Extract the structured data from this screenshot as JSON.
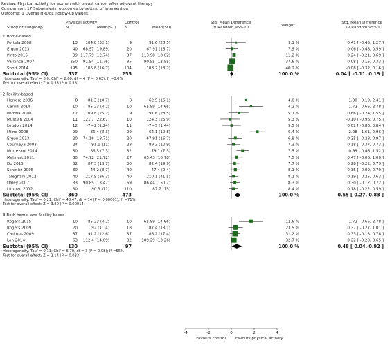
{
  "header": {
    "review_line": "Review:  Physical activity for women with breast cancer after adjuvant therapy",
    "comparison_line": "Comparison:  17 Subanalysis: outcomes by setting of intervention",
    "outcome_line": "Outcome:  1 Overall HRQoL (follow-up values)"
  },
  "columns": {
    "study": "Study or subgroup",
    "group1": "Physical activity",
    "group2": "Control",
    "n": "N",
    "mean_sd": "Mean(SD)",
    "smd_title": "Std. Mean Difference",
    "smd_method": "IV,Random,95% CI",
    "weight": "Weight",
    "smd_title2": "Std. Mean Difference",
    "smd_method2": "IV,Random,95% CI"
  },
  "chart_data": {
    "type": "forest",
    "xlim": [
      -4,
      4
    ],
    "xticks": [
      "-4",
      "-2",
      "0",
      "2",
      "4"
    ],
    "xlabel_left": "Favours control",
    "xlabel_right": "Favours physical activity",
    "groups": [
      {
        "title": "1 Home-based",
        "studies": [
          {
            "name": "Portela 2008",
            "n1": "13",
            "ms1": "104.8 (32.1)",
            "n2": "9",
            "ms2": "91.6 (28.5)",
            "weight": "3.1 %",
            "ci_text": "0.41 [ -0.45, 1.27 ]",
            "est": 0.41,
            "lo": -0.45,
            "hi": 1.27,
            "w": 3.1
          },
          {
            "name": "Ergun 2013",
            "n1": "40",
            "ms1": "68.97 (19.89)",
            "n2": "20",
            "ms2": "67.91 (16.7)",
            "weight": "7.9 %",
            "ci_text": "0.06 [ -0.48, 0.59 ]",
            "est": 0.06,
            "lo": -0.48,
            "hi": 0.59,
            "w": 7.9
          },
          {
            "name": "Pinto 2015",
            "n1": "39",
            "ms1": "117.79 (12.74)",
            "n2": "37",
            "ms2": "113.98 (18.02)",
            "weight": "11.2 %",
            "ci_text": "0.24 [ -0.21, 0.69 ]",
            "est": 0.24,
            "lo": -0.21,
            "hi": 0.69,
            "w": 11.2
          },
          {
            "name": "Vallance 2007",
            "n1": "250",
            "ms1": "91.54 (11.76)",
            "n2": "85",
            "ms2": "90.55 (12.95)",
            "weight": "37.6 %",
            "ci_text": "0.08 [ -0.16, 0.33 ]",
            "est": 0.08,
            "lo": -0.16,
            "hi": 0.33,
            "w": 37.6
          },
          {
            "name": "Short 2014",
            "n1": "195",
            "ms1": "106.8 (16.7)",
            "n2": "104",
            "ms2": "108.2 (18.2)",
            "weight": "40.2 %",
            "ci_text": "-0.08 [ -0.32, 0.16 ]",
            "est": -0.08,
            "lo": -0.32,
            "hi": 0.16,
            "w": 40.2
          }
        ],
        "subtotal": {
          "label": "Subtotal (95% CI)",
          "n1": "537",
          "n2": "255",
          "weight": "100.0 %",
          "ci_text": "0.04 [ -0.11, 0.19 ]",
          "est": 0.04,
          "lo": -0.11,
          "hi": 0.19
        },
        "heterogeneity": "Heterogeneity: Tau² = 0.0; Chi² = 2.60, df = 4 (P = 0.63); I² =0.0%",
        "overall_test": "Test for overall effect: Z = 0.55 (P = 0.58)"
      },
      {
        "title": "2 Facility-based",
        "studies": [
          {
            "name": "Herrero 2006",
            "n1": "8",
            "ms1": "81.3 (10.7)",
            "n2": "8",
            "ms2": "62.5 (16.1)",
            "weight": "4.0 %",
            "ci_text": "1.30 [ 0.19, 2.41 ]",
            "est": 1.3,
            "lo": 0.19,
            "hi": 2.41,
            "w": 4.0
          },
          {
            "name": "Cerulli 2014",
            "n1": "10",
            "ms1": "85.23 (4.2)",
            "n2": "10",
            "ms2": "65.89 (14.66)",
            "weight": "4.2 %",
            "ci_text": "1.72 [ 0.66, 2.78 ]",
            "est": 1.72,
            "lo": 0.66,
            "hi": 2.78,
            "w": 4.2
          },
          {
            "name": "Portela 2008",
            "n1": "12",
            "ms1": "109.8 (25.2)",
            "n2": "9",
            "ms2": "91.6 (28.5)",
            "weight": "5.1 %",
            "ci_text": "0.66 [ -0.24, 1.55 ]",
            "est": 0.66,
            "lo": -0.24,
            "hi": 1.55,
            "w": 5.1
          },
          {
            "name": "Mustian 2004",
            "n1": "11",
            "ms1": "121.7 (22.67)",
            "n2": "10",
            "ms2": "124.3 (25.9)",
            "weight": "5.3 %",
            "ci_text": "-0.10 [ -0.96, 0.75 ]",
            "est": -0.1,
            "lo": -0.96,
            "hi": 0.75,
            "w": 5.3
          },
          {
            "name": "Loudon 2014",
            "n1": "12",
            "ms1": "-7.42 (1.24)",
            "n2": "11",
            "ms2": "-7.45 (1.44)",
            "weight": "5.5 %",
            "ci_text": "0.02 [ -0.80, 0.84 ]",
            "est": 0.02,
            "lo": -0.8,
            "hi": 0.84,
            "w": 5.5
          },
          {
            "name": "Milne 2008",
            "n1": "29",
            "ms1": "86.4 (8.3)",
            "n2": "29",
            "ms2": "64.1 (10.8)",
            "weight": "6.4 %",
            "ci_text": "2.28 [ 1.61, 2.96 ]",
            "est": 2.28,
            "lo": 1.61,
            "hi": 2.96,
            "w": 6.4
          },
          {
            "name": "Ergun 2013",
            "n1": "20",
            "ms1": "74.16 (18.71)",
            "n2": "20",
            "ms2": "67.91 (16.7)",
            "weight": "6.8 %",
            "ci_text": "0.35 [ -0.28, 0.97 ]",
            "est": 0.35,
            "lo": -0.28,
            "hi": 0.97,
            "w": 6.8
          },
          {
            "name": "Courneya 2003",
            "n1": "24",
            "ms1": "91.1 (11)",
            "n2": "28",
            "ms2": "89.3 (10.9)",
            "weight": "7.3 %",
            "ci_text": "0.18 [ -0.37, 0.73 ]",
            "est": 0.18,
            "lo": -0.37,
            "hi": 0.73,
            "w": 7.3
          },
          {
            "name": "Murtezani 2014",
            "n1": "30",
            "ms1": "86.5 (7.3)",
            "n2": "32",
            "ms2": "79.1 (7.5)",
            "weight": "7.5 %",
            "ci_text": "0.99 [ 0.46, 1.52 ]",
            "est": 0.99,
            "lo": 0.46,
            "hi": 1.52,
            "w": 7.5
          },
          {
            "name": "Mehnert 2011",
            "n1": "30",
            "ms1": "74.72 (21.72)",
            "n2": "27",
            "ms2": "65.43 (16.78)",
            "weight": "7.5 %",
            "ci_text": "0.47 [ -0.06, 1.00 ]",
            "est": 0.47,
            "lo": -0.06,
            "hi": 1.0,
            "w": 7.5
          },
          {
            "name": "Do 2015",
            "n1": "32",
            "ms1": "87.3 (13.7)",
            "n2": "30",
            "ms2": "82.4 (19.9)",
            "weight": "7.7 %",
            "ci_text": "0.28 [ -0.22, 0.79 ]",
            "est": 0.28,
            "lo": -0.22,
            "hi": 0.79,
            "w": 7.7
          },
          {
            "name": "Schmitz 2005",
            "n1": "39",
            "ms1": "-44.2 (8.7)",
            "n2": "40",
            "ms2": "-47.4 (9.4)",
            "weight": "8.1 %",
            "ci_text": "0.35 [ -0.09, 0.79 ]",
            "est": 0.35,
            "lo": -0.09,
            "hi": 0.79,
            "w": 8.1
          },
          {
            "name": "Taleghani 2012",
            "n1": "40",
            "ms1": "217.5 (36.3)",
            "n2": "40",
            "ms2": "210.1 (41.5)",
            "weight": "8.1 %",
            "ci_text": "0.19 [ -0.25, 0.63 ]",
            "est": 0.19,
            "lo": -0.25,
            "hi": 0.63,
            "w": 8.1
          },
          {
            "name": "Daley 2007",
            "n1": "33",
            "ms1": "90.85 (13.47)",
            "n2": "69",
            "ms2": "86.44 (15.07)",
            "weight": "8.3 %",
            "ci_text": "0.30 [ -0.12, 0.72 ]",
            "est": 0.3,
            "lo": -0.12,
            "hi": 0.72,
            "w": 8.3
          },
          {
            "name": "Littman 2012",
            "n1": "30",
            "ms1": "90.3 (11)",
            "n2": "110",
            "ms2": "87.7 (15)",
            "weight": "8.4 %",
            "ci_text": "0.18 [ -0.22, 0.59 ]",
            "est": 0.18,
            "lo": -0.22,
            "hi": 0.59,
            "w": 8.4
          }
        ],
        "subtotal": {
          "label": "Subtotal (95% CI)",
          "n1": "360",
          "n2": "473",
          "weight": "100.0 %",
          "ci_text": "0.55 [ 0.27, 0.83 ]",
          "est": 0.55,
          "lo": 0.27,
          "hi": 0.83
        },
        "heterogeneity": "Heterogeneity: Tau² = 0.21; Chi² = 48.47, df = 14 (P = 0.00001); I² =71%",
        "overall_test": "Test for overall effect: Z = 3.80 (P = 0.00014)"
      },
      {
        "title": "3 Both home- and facility-based",
        "studies": [
          {
            "name": "Rogers 2015",
            "n1": "10",
            "ms1": "85.23 (4.2)",
            "n2": "10",
            "ms2": "65.89 (14.66)",
            "weight": "12.6 %",
            "ci_text": "1.72 [ 0.66, 2.78 ]",
            "est": 1.72,
            "lo": 0.66,
            "hi": 2.78,
            "w": 12.6
          },
          {
            "name": "Rogers 2009",
            "n1": "20",
            "ms1": "92 (11.4)",
            "n2": "18",
            "ms2": "87.4 (13.1)",
            "weight": "23.5 %",
            "ci_text": "0.37 [ -0.27, 1.01 ]",
            "est": 0.37,
            "lo": -0.27,
            "hi": 1.01,
            "w": 23.5
          },
          {
            "name": "Cadmus 2009",
            "n1": "37",
            "ms1": "91.2 (12.6)",
            "n2": "37",
            "ms2": "86.2 (17.4)",
            "weight": "31.2 %",
            "ci_text": "0.33 [ -0.13, 0.78 ]",
            "est": 0.33,
            "lo": -0.13,
            "hi": 0.78,
            "w": 31.2
          },
          {
            "name": "Loh 2014",
            "n1": "63",
            "ms1": "112.4 (14.09)",
            "n2": "32",
            "ms2": "109.29 (13.26)",
            "weight": "32.7 %",
            "ci_text": "0.22 [ -0.20, 0.65 ]",
            "est": 0.22,
            "lo": -0.2,
            "hi": 0.65,
            "w": 32.7
          }
        ],
        "subtotal": {
          "label": "Subtotal (95% CI)",
          "n1": "130",
          "n2": "97",
          "weight": "100.0 %",
          "ci_text": "0.48 [ 0.04, 0.92 ]",
          "est": 0.48,
          "lo": 0.04,
          "hi": 0.92
        },
        "heterogeneity": "Heterogeneity: Tau² = 0.11; Chi² = 6.70, df = 3 (P = 0.08); I² =55%",
        "overall_test": "Test for overall effect: Z = 2.14 (P = 0.033)"
      }
    ]
  }
}
